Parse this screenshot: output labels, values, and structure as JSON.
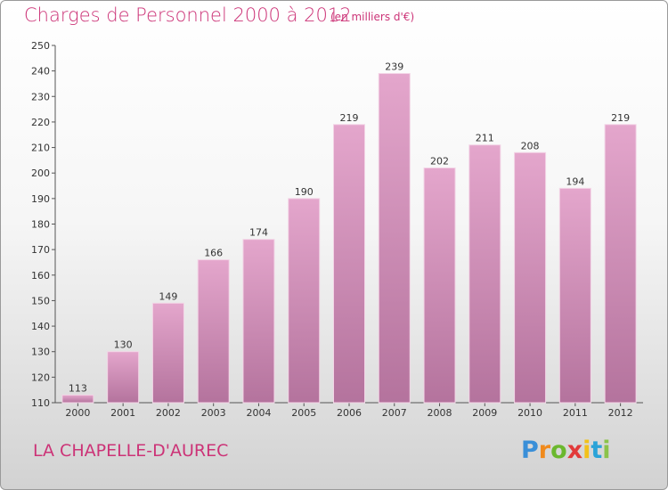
{
  "header": {
    "title": "Charges de Personnel 2000 à 2012",
    "unit": "(en milliers d'€)"
  },
  "footer": {
    "commune": "LA CHAPELLE-D'AUREC",
    "logo_letters": [
      "P",
      "r",
      "o",
      "x",
      "i",
      "t",
      "i"
    ],
    "logo_colors": [
      "#3a8fd8",
      "#f08a1c",
      "#6bb82e",
      "#e23a3a",
      "#f2c11a",
      "#2aa3d8",
      "#8bc34a"
    ]
  },
  "colors": {
    "accent": "#cc3377",
    "bar_top": "#e4a6cc",
    "bar_bottom": "#b4739d"
  },
  "chart_data": {
    "type": "bar",
    "title": "Charges de Personnel 2000 à 2012",
    "categories": [
      "2000",
      "2001",
      "2002",
      "2003",
      "2004",
      "2005",
      "2006",
      "2007",
      "2008",
      "2009",
      "2010",
      "2011",
      "2012"
    ],
    "values": [
      113,
      130,
      149,
      166,
      174,
      190,
      219,
      239,
      202,
      211,
      208,
      194,
      219
    ],
    "ylim": [
      110,
      250
    ],
    "yticks": [
      110,
      120,
      130,
      140,
      150,
      160,
      170,
      180,
      190,
      200,
      210,
      220,
      230,
      240,
      250
    ],
    "grid": false,
    "xlabel": "",
    "ylabel": ""
  }
}
